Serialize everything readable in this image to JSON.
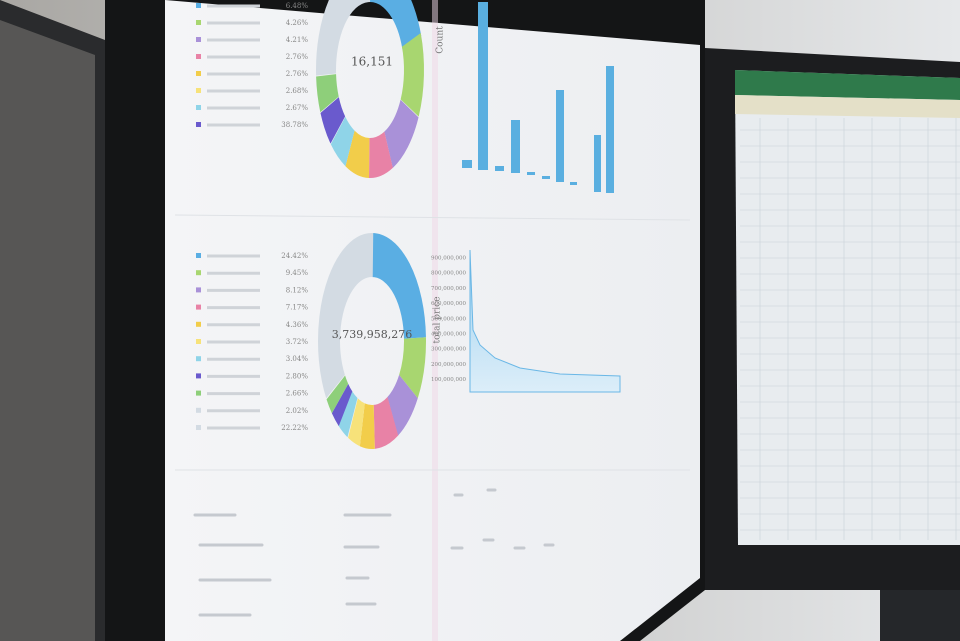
{
  "top_panel": {
    "center_value": "16,151",
    "legend_values": [
      "6.48%",
      "4.26%",
      "4.21%",
      "2.76%",
      "2.76%",
      "2.68%",
      "2.67%",
      "38.78%"
    ]
  },
  "bar_chart": {
    "y_axis_label": "Count"
  },
  "bottom_panel": {
    "center_value": "3,739,958,276",
    "legend_values": [
      "24.42%",
      "9.45%",
      "8.12%",
      "7.17%",
      "4.36%",
      "3.72%",
      "3.04%",
      "2.80%",
      "2.66%",
      "2.02%",
      "22.22%"
    ]
  },
  "line_chart": {
    "y_axis_label": "total price",
    "yticks": [
      "900,000,000",
      "800,000,000",
      "700,000,000",
      "600,000,000",
      "500,000,000",
      "400,000,000",
      "300,000,000",
      "200,000,000",
      "100,000,000"
    ]
  }
}
